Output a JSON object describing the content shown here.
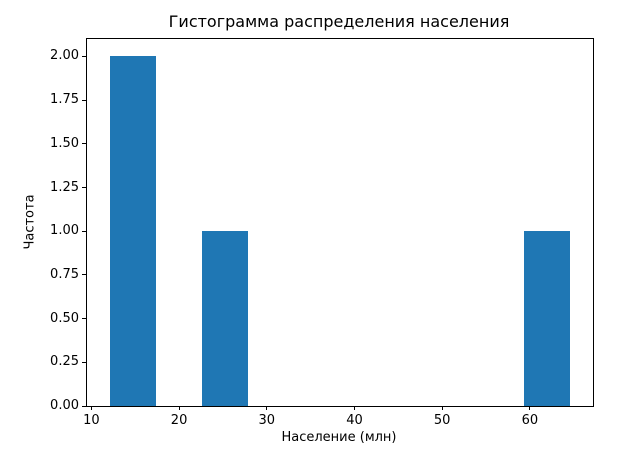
{
  "chart_data": {
    "type": "bar",
    "subtype": "histogram",
    "title": "Гистограмма распределения населения",
    "xlabel": "Население (млн)",
    "ylabel": "Частота",
    "bar_color": "#1f77b4",
    "grid": false,
    "legend": "none",
    "xlim": [
      9.5,
      67.2
    ],
    "ylim": [
      0,
      2.1
    ],
    "x_ticks": [
      10,
      20,
      30,
      40,
      50,
      60
    ],
    "y_ticks": [
      0.0,
      0.25,
      0.5,
      0.75,
      1.0,
      1.25,
      1.5,
      1.75,
      2.0
    ],
    "bars": [
      {
        "x_start": 12.1,
        "x_end": 17.35,
        "count": 2
      },
      {
        "x_start": 22.6,
        "x_end": 27.85,
        "count": 1
      },
      {
        "x_start": 59.35,
        "x_end": 64.6,
        "count": 1
      }
    ]
  }
}
